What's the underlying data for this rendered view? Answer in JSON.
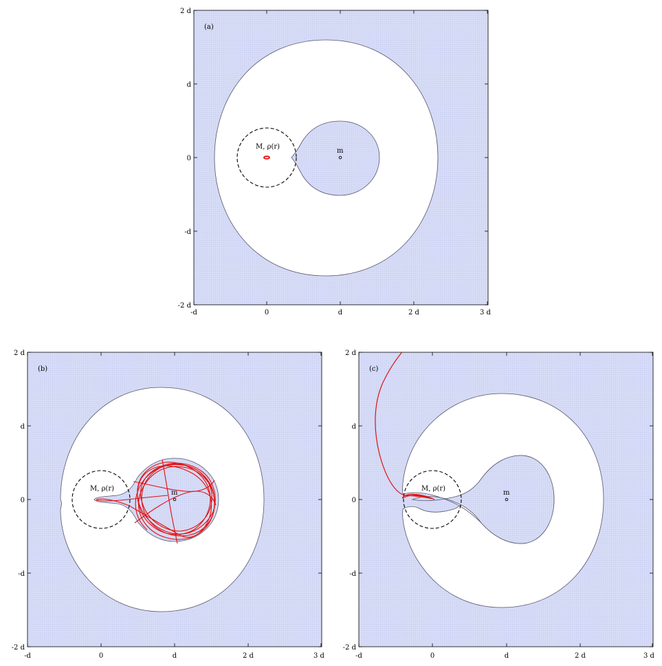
{
  "colors": {
    "forbidden_fill": "#d6dbf6",
    "allowed_fill": "#ffffff",
    "boundary": "#55556a",
    "trajectory": "#e01010",
    "frame": "#000000"
  },
  "tick_labels": {
    "x": [
      "-d",
      "0",
      "d",
      "2 d",
      "3 d"
    ],
    "y": [
      "2 d",
      "d",
      "0",
      "-d",
      "-2 d"
    ]
  },
  "panels": [
    {
      "label": "(a)",
      "mass_label": "M, ρ(r)",
      "satellite_label": "m",
      "trajectory": "bound at center"
    },
    {
      "label": "(b)",
      "mass_label": "M, ρ(r)",
      "satellite_label": "m",
      "trajectory": "transfer to satellite lobe"
    },
    {
      "label": "(c)",
      "mass_label": "M, ρ(r)",
      "satellite_label": "m",
      "trajectory": "escape"
    }
  ]
}
